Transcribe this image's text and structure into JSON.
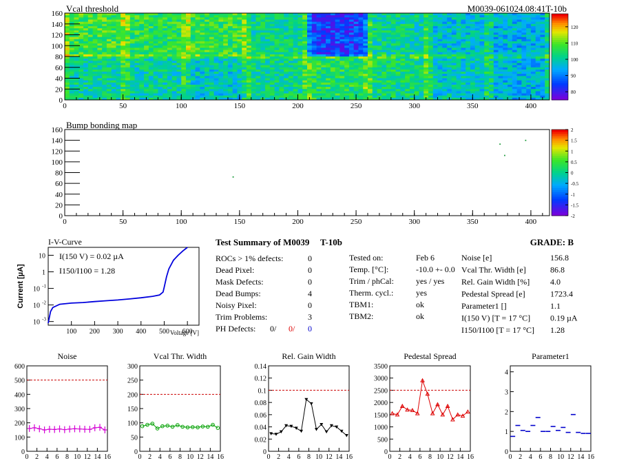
{
  "colors": {
    "noise": "#d400d4",
    "vcal": "#00a000",
    "gain": "#000000",
    "pedestal": "#dd0000",
    "param1": "#0000cc",
    "iv": "#0000dd",
    "cut": "#cc0000"
  },
  "top": {
    "title": "Vcal threshold",
    "module_label": "M0039-061024.08:41T-10b",
    "bump_title": "Bump bonding map"
  },
  "summary": {
    "title": "Test Summary of M0039",
    "temp_label": "T-10b",
    "grade": "GRADE:  B",
    "left": [
      {
        "label": "ROCs > 1% defects:",
        "value": "0"
      },
      {
        "label": "Dead Pixel:",
        "value": "0"
      },
      {
        "label": "Mask Defects:",
        "value": "0"
      },
      {
        "label": "Dead Bumps:",
        "value": "4"
      },
      {
        "label": "Noisy Pixel:",
        "value": "0"
      },
      {
        "label": "Trim Problems:",
        "value": "3"
      }
    ],
    "ph_label": "PH Defects:",
    "ph_values": [
      "0/",
      "0/",
      "0"
    ],
    "mid": [
      {
        "label": "Tested on:",
        "value": "Feb 6"
      },
      {
        "label": "Temp. [°C]:",
        "value": "-10.0 +- 0.0"
      },
      {
        "label": "Trim / phCal:",
        "value": "yes / yes"
      },
      {
        "label": "Therm. cycl.:",
        "value": "yes"
      },
      {
        "label": "TBM1:",
        "value": "ok"
      },
      {
        "label": "TBM2:",
        "value": "ok"
      }
    ],
    "right": [
      {
        "label": "Noise [e]",
        "value": "156.8"
      },
      {
        "label": "Vcal Thr. Width [e]",
        "value": "86.8"
      },
      {
        "label": "Rel. Gain Width [%]",
        "value": "4.0"
      },
      {
        "label": "Pedestal Spread [e]",
        "value": "1723.4"
      },
      {
        "label": "Parameter1 []",
        "value": "1.1"
      },
      {
        "label": "I(150 V)  [T = 17 °C]",
        "value": "0.19 µA"
      },
      {
        "label": "I150/I100  [T = 17 °C]",
        "value": "1.28"
      }
    ]
  },
  "chart_data": [
    {
      "type": "heatmap",
      "title": "Vcal threshold",
      "xlim": [
        0,
        416
      ],
      "ylim": [
        0,
        160
      ],
      "x_ticks": [
        0,
        50,
        100,
        150,
        200,
        250,
        300,
        350,
        400
      ],
      "y_ticks": [
        0,
        20,
        40,
        60,
        80,
        100,
        120,
        140,
        160
      ],
      "z_ticks": [
        80,
        90,
        100,
        110,
        120
      ],
      "zlim": [
        75,
        128
      ],
      "grid": "8 ROCs per row, 2 rows (52x80 pixels each)",
      "roc_means": [
        [
          101,
          100,
          98,
          102,
          105,
          103,
          98,
          95
        ],
        [
          108,
          106,
          107,
          102,
          84,
          101,
          97,
          95
        ]
      ]
    },
    {
      "type": "heatmap",
      "title": "Bump bonding map",
      "xlim": [
        0,
        416
      ],
      "ylim": [
        0,
        160
      ],
      "x_ticks": [
        0,
        50,
        100,
        150,
        200,
        250,
        300,
        350,
        400
      ],
      "y_ticks": [
        0,
        20,
        40,
        60,
        80,
        100,
        120,
        140,
        160
      ],
      "z_ticks": [
        -2,
        -1.5,
        -1,
        -0.5,
        0,
        0.5,
        1,
        1.5,
        2
      ],
      "zlim": [
        -2,
        2
      ],
      "points": [
        [
          144,
          73
        ],
        [
          373,
          134
        ],
        [
          377,
          113
        ],
        [
          395,
          141
        ]
      ]
    },
    {
      "type": "line",
      "title": "I-V-Curve",
      "xlabel": "Voltage [V]",
      "ylabel": "Current [µA]",
      "log_y": true,
      "xlim": [
        0,
        650
      ],
      "ylim": [
        0.0006,
        30
      ],
      "x_ticks": [
        100,
        200,
        300,
        400,
        500,
        600
      ],
      "y_ticks": [
        "10^-3",
        "10^-2",
        "10^-1",
        "1",
        "10"
      ],
      "annotations": [
        "I(150 V) = 0.02 µA",
        "I150/I100 =  1.28"
      ],
      "x": [
        0,
        10,
        20,
        50,
        100,
        150,
        200,
        250,
        300,
        350,
        400,
        450,
        480,
        495,
        500,
        510,
        520,
        540,
        560,
        580,
        600
      ],
      "y": [
        0.0008,
        0.004,
        0.007,
        0.011,
        0.013,
        0.014,
        0.016,
        0.018,
        0.02,
        0.023,
        0.027,
        0.033,
        0.04,
        0.06,
        0.12,
        0.5,
        1.5,
        5,
        10,
        18,
        30
      ]
    },
    {
      "type": "line",
      "title": "Noise",
      "x": [
        0,
        1,
        2,
        3,
        4,
        5,
        6,
        7,
        8,
        9,
        10,
        11,
        12,
        13,
        14,
        15
      ],
      "values": [
        160,
        165,
        158,
        150,
        155,
        153,
        157,
        152,
        156,
        158,
        157,
        155,
        154,
        165,
        168,
        150
      ],
      "xlim": [
        0,
        16
      ],
      "ylim": [
        0,
        600
      ],
      "y_ticks": [
        0,
        100,
        200,
        300,
        400,
        500,
        600
      ],
      "cut": 500,
      "marker": "cross"
    },
    {
      "type": "line",
      "title": "Vcal Thr. Width",
      "x": [
        0,
        1,
        2,
        3,
        4,
        5,
        6,
        7,
        8,
        9,
        10,
        11,
        12,
        13,
        14,
        15
      ],
      "values": [
        88,
        93,
        97,
        80,
        88,
        90,
        86,
        92,
        86,
        84,
        85,
        84,
        87,
        86,
        93,
        82
      ],
      "xlim": [
        0,
        16
      ],
      "ylim": [
        0,
        300
      ],
      "y_ticks": [
        0,
        50,
        100,
        150,
        200,
        250,
        300
      ],
      "cut": 200,
      "marker": "circle"
    },
    {
      "type": "line",
      "title": "Rel. Gain Width",
      "x": [
        0,
        1,
        2,
        3,
        4,
        5,
        6,
        7,
        8,
        9,
        10,
        11,
        12,
        13,
        14,
        15
      ],
      "values": [
        0.029,
        0.028,
        0.032,
        0.042,
        0.041,
        0.038,
        0.033,
        0.085,
        0.078,
        0.036,
        0.044,
        0.032,
        0.042,
        0.04,
        0.033,
        0.026
      ],
      "xlim": [
        0,
        16
      ],
      "ylim": [
        0,
        0.14
      ],
      "y_ticks": [
        0,
        0.02,
        0.04,
        0.06,
        0.08,
        0.1,
        0.12,
        0.14
      ],
      "cut": 0.1,
      "marker": "triangle-down"
    },
    {
      "type": "line",
      "title": "Pedestal Spread",
      "x": [
        0,
        1,
        2,
        3,
        4,
        5,
        6,
        7,
        8,
        9,
        10,
        11,
        12,
        13,
        14,
        15
      ],
      "values": [
        1550,
        1500,
        1850,
        1700,
        1680,
        1550,
        2900,
        2350,
        1550,
        1920,
        1500,
        1850,
        1300,
        1500,
        1450,
        1620
      ],
      "xlim": [
        0,
        16
      ],
      "ylim": [
        0,
        3500
      ],
      "y_ticks": [
        0,
        500,
        1000,
        1500,
        2000,
        2500,
        3000,
        3500
      ],
      "cut": 2500,
      "marker": "triangle-up"
    },
    {
      "type": "scatter",
      "title": "Parameter1",
      "x": [
        0,
        1,
        2,
        3,
        4,
        5,
        6,
        7,
        8,
        9,
        10,
        11,
        12,
        13,
        14,
        15
      ],
      "values": [
        0.75,
        1.3,
        1.05,
        1.0,
        1.3,
        1.7,
        1.0,
        1.0,
        1.25,
        1.05,
        1.2,
        0.95,
        1.85,
        0.95,
        0.9,
        0.9
      ],
      "xlim": [
        0,
        16
      ],
      "ylim": [
        0,
        4.3
      ],
      "y_ticks": [
        0,
        1,
        2,
        3,
        4
      ],
      "marker": "hbar"
    }
  ]
}
